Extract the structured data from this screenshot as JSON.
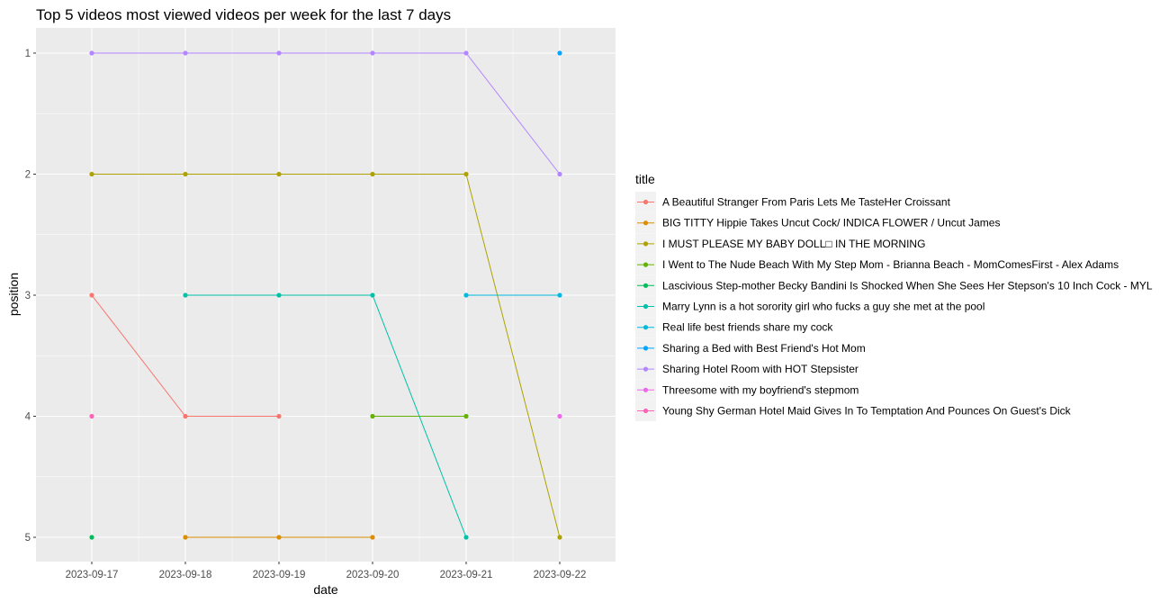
{
  "chart_data": {
    "type": "line",
    "title": "Top 5 videos most viewed videos per week for the last 7 days",
    "xlabel": "date",
    "ylabel": "position",
    "x": [
      "2023-09-17",
      "2023-09-18",
      "2023-09-19",
      "2023-09-20",
      "2023-09-21",
      "2023-09-22"
    ],
    "y_ticks": [
      "1",
      "2",
      "3",
      "4",
      "5"
    ],
    "ylim": [
      1,
      5
    ],
    "y_reversed": true,
    "grid": true,
    "legend": {
      "title": "title",
      "placement": "right"
    },
    "series": [
      {
        "name": "A Beautiful Stranger From Paris Lets Me TasteHer Croissant",
        "color": "#F8766D",
        "points": [
          [
            "2023-09-17",
            3
          ],
          [
            "2023-09-18",
            4
          ],
          [
            "2023-09-19",
            4
          ]
        ]
      },
      {
        "name": "BIG TITTY Hippie Takes Uncut Cock/ INDICA FLOWER / Uncut James",
        "color": "#DB8E00",
        "points": [
          [
            "2023-09-18",
            5
          ],
          [
            "2023-09-19",
            5
          ],
          [
            "2023-09-20",
            5
          ]
        ]
      },
      {
        "name": "I MUST PLEASE MY BABY DOLL□ IN THE MORNING",
        "color": "#AEA200",
        "points": [
          [
            "2023-09-17",
            2
          ],
          [
            "2023-09-18",
            2
          ],
          [
            "2023-09-19",
            2
          ],
          [
            "2023-09-20",
            2
          ],
          [
            "2023-09-21",
            2
          ],
          [
            "2023-09-22",
            5
          ]
        ]
      },
      {
        "name": "I Went to The Nude Beach With My Step Mom - Brianna Beach - MomComesFirst - Alex Adams",
        "color": "#64B200",
        "points": [
          [
            "2023-09-20",
            4
          ],
          [
            "2023-09-21",
            4
          ]
        ]
      },
      {
        "name": "Lascivious Step-mother Becky Bandini Is Shocked When She Sees Her Stepson's 10 Inch Cock - MYL",
        "color": "#00BD5C",
        "points": [
          [
            "2023-09-17",
            5
          ]
        ]
      },
      {
        "name": "Marry Lynn is a hot sorority girl who fucks a guy she met at the pool",
        "color": "#00C1A7",
        "points": [
          [
            "2023-09-18",
            3
          ],
          [
            "2023-09-19",
            3
          ],
          [
            "2023-09-20",
            3
          ],
          [
            "2023-09-21",
            5
          ]
        ]
      },
      {
        "name": "Real life best friends share my cock",
        "color": "#00BADE",
        "points": [
          [
            "2023-09-21",
            3
          ],
          [
            "2023-09-22",
            3
          ]
        ]
      },
      {
        "name": "Sharing a Bed with Best Friend's Hot Mom",
        "color": "#00A6FF",
        "points": [
          [
            "2023-09-22",
            1
          ]
        ]
      },
      {
        "name": "Sharing Hotel Room with HOT Stepsister",
        "color": "#B385FF",
        "points": [
          [
            "2023-09-17",
            1
          ],
          [
            "2023-09-18",
            1
          ],
          [
            "2023-09-19",
            1
          ],
          [
            "2023-09-20",
            1
          ],
          [
            "2023-09-21",
            1
          ],
          [
            "2023-09-22",
            2
          ]
        ]
      },
      {
        "name": "Threesome with my boyfriend's stepmom",
        "color": "#EF67EB",
        "points": [
          [
            "2023-09-22",
            4
          ]
        ]
      },
      {
        "name": "Young Shy German Hotel Maid Gives In To Temptation And Pounces On Guest's Dick",
        "color": "#FF63B6",
        "points": [
          [
            "2023-09-17",
            4
          ]
        ]
      }
    ]
  }
}
